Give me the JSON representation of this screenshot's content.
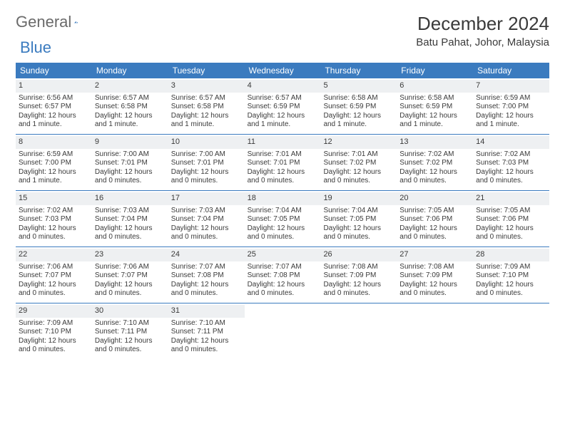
{
  "brand": {
    "part1": "General",
    "part2": "Blue"
  },
  "title": "December 2024",
  "location": "Batu Pahat, Johor, Malaysia",
  "colors": {
    "header_bg": "#3b7bbf",
    "daynum_bg": "#eef0f2",
    "text": "#3a3a3a",
    "logo_gray": "#6a6a6a"
  },
  "dow": [
    "Sunday",
    "Monday",
    "Tuesday",
    "Wednesday",
    "Thursday",
    "Friday",
    "Saturday"
  ],
  "weeks": [
    [
      {
        "n": "1",
        "sr": "Sunrise: 6:56 AM",
        "ss": "Sunset: 6:57 PM",
        "dl": "Daylight: 12 hours and 1 minute."
      },
      {
        "n": "2",
        "sr": "Sunrise: 6:57 AM",
        "ss": "Sunset: 6:58 PM",
        "dl": "Daylight: 12 hours and 1 minute."
      },
      {
        "n": "3",
        "sr": "Sunrise: 6:57 AM",
        "ss": "Sunset: 6:58 PM",
        "dl": "Daylight: 12 hours and 1 minute."
      },
      {
        "n": "4",
        "sr": "Sunrise: 6:57 AM",
        "ss": "Sunset: 6:59 PM",
        "dl": "Daylight: 12 hours and 1 minute."
      },
      {
        "n": "5",
        "sr": "Sunrise: 6:58 AM",
        "ss": "Sunset: 6:59 PM",
        "dl": "Daylight: 12 hours and 1 minute."
      },
      {
        "n": "6",
        "sr": "Sunrise: 6:58 AM",
        "ss": "Sunset: 6:59 PM",
        "dl": "Daylight: 12 hours and 1 minute."
      },
      {
        "n": "7",
        "sr": "Sunrise: 6:59 AM",
        "ss": "Sunset: 7:00 PM",
        "dl": "Daylight: 12 hours and 1 minute."
      }
    ],
    [
      {
        "n": "8",
        "sr": "Sunrise: 6:59 AM",
        "ss": "Sunset: 7:00 PM",
        "dl": "Daylight: 12 hours and 1 minute."
      },
      {
        "n": "9",
        "sr": "Sunrise: 7:00 AM",
        "ss": "Sunset: 7:01 PM",
        "dl": "Daylight: 12 hours and 0 minutes."
      },
      {
        "n": "10",
        "sr": "Sunrise: 7:00 AM",
        "ss": "Sunset: 7:01 PM",
        "dl": "Daylight: 12 hours and 0 minutes."
      },
      {
        "n": "11",
        "sr": "Sunrise: 7:01 AM",
        "ss": "Sunset: 7:01 PM",
        "dl": "Daylight: 12 hours and 0 minutes."
      },
      {
        "n": "12",
        "sr": "Sunrise: 7:01 AM",
        "ss": "Sunset: 7:02 PM",
        "dl": "Daylight: 12 hours and 0 minutes."
      },
      {
        "n": "13",
        "sr": "Sunrise: 7:02 AM",
        "ss": "Sunset: 7:02 PM",
        "dl": "Daylight: 12 hours and 0 minutes."
      },
      {
        "n": "14",
        "sr": "Sunrise: 7:02 AM",
        "ss": "Sunset: 7:03 PM",
        "dl": "Daylight: 12 hours and 0 minutes."
      }
    ],
    [
      {
        "n": "15",
        "sr": "Sunrise: 7:02 AM",
        "ss": "Sunset: 7:03 PM",
        "dl": "Daylight: 12 hours and 0 minutes."
      },
      {
        "n": "16",
        "sr": "Sunrise: 7:03 AM",
        "ss": "Sunset: 7:04 PM",
        "dl": "Daylight: 12 hours and 0 minutes."
      },
      {
        "n": "17",
        "sr": "Sunrise: 7:03 AM",
        "ss": "Sunset: 7:04 PM",
        "dl": "Daylight: 12 hours and 0 minutes."
      },
      {
        "n": "18",
        "sr": "Sunrise: 7:04 AM",
        "ss": "Sunset: 7:05 PM",
        "dl": "Daylight: 12 hours and 0 minutes."
      },
      {
        "n": "19",
        "sr": "Sunrise: 7:04 AM",
        "ss": "Sunset: 7:05 PM",
        "dl": "Daylight: 12 hours and 0 minutes."
      },
      {
        "n": "20",
        "sr": "Sunrise: 7:05 AM",
        "ss": "Sunset: 7:06 PM",
        "dl": "Daylight: 12 hours and 0 minutes."
      },
      {
        "n": "21",
        "sr": "Sunrise: 7:05 AM",
        "ss": "Sunset: 7:06 PM",
        "dl": "Daylight: 12 hours and 0 minutes."
      }
    ],
    [
      {
        "n": "22",
        "sr": "Sunrise: 7:06 AM",
        "ss": "Sunset: 7:07 PM",
        "dl": "Daylight: 12 hours and 0 minutes."
      },
      {
        "n": "23",
        "sr": "Sunrise: 7:06 AM",
        "ss": "Sunset: 7:07 PM",
        "dl": "Daylight: 12 hours and 0 minutes."
      },
      {
        "n": "24",
        "sr": "Sunrise: 7:07 AM",
        "ss": "Sunset: 7:08 PM",
        "dl": "Daylight: 12 hours and 0 minutes."
      },
      {
        "n": "25",
        "sr": "Sunrise: 7:07 AM",
        "ss": "Sunset: 7:08 PM",
        "dl": "Daylight: 12 hours and 0 minutes."
      },
      {
        "n": "26",
        "sr": "Sunrise: 7:08 AM",
        "ss": "Sunset: 7:09 PM",
        "dl": "Daylight: 12 hours and 0 minutes."
      },
      {
        "n": "27",
        "sr": "Sunrise: 7:08 AM",
        "ss": "Sunset: 7:09 PM",
        "dl": "Daylight: 12 hours and 0 minutes."
      },
      {
        "n": "28",
        "sr": "Sunrise: 7:09 AM",
        "ss": "Sunset: 7:10 PM",
        "dl": "Daylight: 12 hours and 0 minutes."
      }
    ],
    [
      {
        "n": "29",
        "sr": "Sunrise: 7:09 AM",
        "ss": "Sunset: 7:10 PM",
        "dl": "Daylight: 12 hours and 0 minutes."
      },
      {
        "n": "30",
        "sr": "Sunrise: 7:10 AM",
        "ss": "Sunset: 7:11 PM",
        "dl": "Daylight: 12 hours and 0 minutes."
      },
      {
        "n": "31",
        "sr": "Sunrise: 7:10 AM",
        "ss": "Sunset: 7:11 PM",
        "dl": "Daylight: 12 hours and 0 minutes."
      },
      null,
      null,
      null,
      null
    ]
  ]
}
